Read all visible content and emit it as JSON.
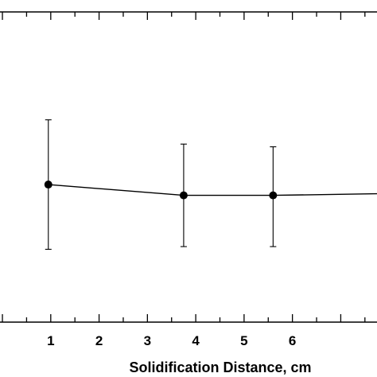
{
  "chart_data": {
    "type": "line",
    "title": "",
    "xlabel": "Solidification Distance, cm",
    "ylabel": "",
    "xlim": [
      -0.05,
      7.75
    ],
    "ylim": [
      0,
      5.75
    ],
    "x_tick_labels": [
      "1",
      "2",
      "3",
      "4",
      "5",
      "6"
    ],
    "x_ticks": [
      1,
      2,
      3,
      4,
      5,
      6
    ],
    "grid": false,
    "legend": "none",
    "colors": {
      "line": "#000000",
      "marker": "#000000",
      "background": "#ffffff"
    },
    "series": [
      {
        "x": [
          0.95,
          3.75,
          5.6,
          7.75
        ],
        "y": [
          2.55,
          2.35,
          2.35,
          2.38
        ],
        "err_low": [
          1.2,
          0.95,
          0.95,
          0
        ],
        "err_high": [
          1.2,
          0.95,
          0.9,
          0
        ]
      }
    ]
  }
}
